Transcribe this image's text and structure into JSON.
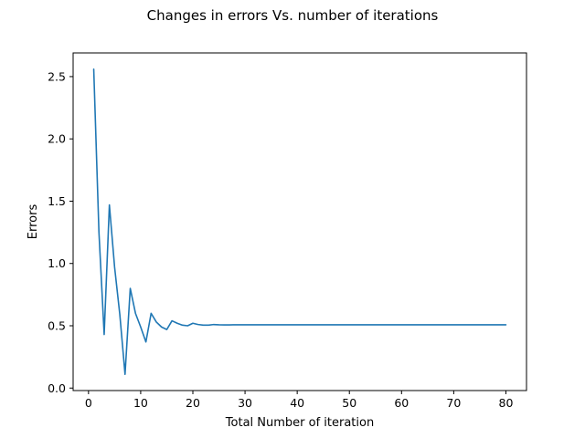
{
  "chart_data": {
    "type": "line",
    "title": "Changes in errors Vs. number of iterations",
    "xlabel": "Total Number of iteration",
    "ylabel": "Errors",
    "xlim": [
      -2.95,
      83.95
    ],
    "ylim": [
      -0.02,
      2.69
    ],
    "xticks": [
      0,
      10,
      20,
      30,
      40,
      50,
      60,
      70,
      80
    ],
    "yticks": [
      0.0,
      0.5,
      1.0,
      1.5,
      2.0,
      2.5
    ],
    "xtick_labels": [
      "0",
      "10",
      "20",
      "30",
      "40",
      "50",
      "60",
      "70",
      "80"
    ],
    "ytick_labels": [
      "0.0",
      "0.5",
      "1.0",
      "1.5",
      "2.0",
      "2.5"
    ],
    "grid": false,
    "series": [
      {
        "color": "#1f77b4",
        "x": [
          1,
          2,
          3,
          4,
          5,
          6,
          7,
          8,
          9,
          10,
          11,
          12,
          13,
          14,
          15,
          16,
          17,
          18,
          19,
          20,
          21,
          22,
          23,
          24,
          25,
          26,
          27,
          28,
          29,
          30,
          31,
          32,
          33,
          34,
          35,
          36,
          37,
          38,
          39,
          40,
          41,
          42,
          43,
          44,
          45,
          46,
          47,
          48,
          49,
          50,
          51,
          52,
          53,
          54,
          55,
          56,
          57,
          58,
          59,
          60,
          61,
          62,
          63,
          64,
          65,
          66,
          67,
          68,
          69,
          70,
          71,
          72,
          73,
          74,
          75,
          76,
          77,
          78,
          79,
          80
        ],
        "y": [
          2.56,
          1.25,
          0.43,
          1.47,
          0.97,
          0.59,
          0.11,
          0.8,
          0.6,
          0.49,
          0.37,
          0.6,
          0.53,
          0.49,
          0.47,
          0.54,
          0.52,
          0.505,
          0.5,
          0.52,
          0.51,
          0.505,
          0.505,
          0.51,
          0.508,
          0.507,
          0.507,
          0.508,
          0.508,
          0.508,
          0.508,
          0.508,
          0.508,
          0.508,
          0.508,
          0.508,
          0.508,
          0.508,
          0.508,
          0.508,
          0.508,
          0.508,
          0.508,
          0.508,
          0.508,
          0.508,
          0.508,
          0.508,
          0.508,
          0.508,
          0.508,
          0.508,
          0.508,
          0.508,
          0.508,
          0.508,
          0.508,
          0.508,
          0.508,
          0.508,
          0.508,
          0.508,
          0.508,
          0.508,
          0.508,
          0.508,
          0.508,
          0.508,
          0.508,
          0.508,
          0.508,
          0.508,
          0.508,
          0.508,
          0.508,
          0.508,
          0.508,
          0.508,
          0.508,
          0.508
        ]
      }
    ]
  }
}
